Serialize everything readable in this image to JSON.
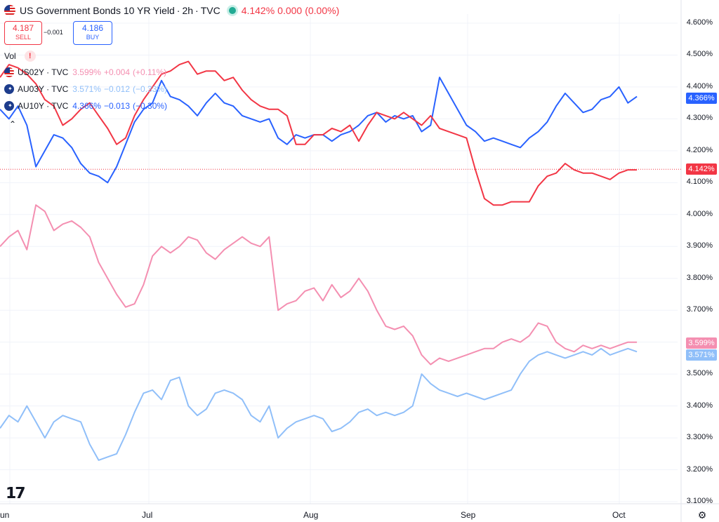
{
  "header": {
    "symbol_title": "US Government Bonds 10 YR Yield",
    "interval": "2h",
    "source": "TVC",
    "last": "4.142%",
    "change": "0.000",
    "change_pct": "(0.00%)"
  },
  "trade": {
    "sell_price": "4.187",
    "sell_label": "SELL",
    "spread": "−0.001",
    "buy_price": "4.186",
    "buy_label": "BUY"
  },
  "volume_label": "Vol",
  "legend": [
    {
      "name": "US02Y · TVC",
      "value": "3.599%",
      "change": "+0.004",
      "change_pct": "(+0.11%)",
      "color": "#f48fb1",
      "flag": "us-flag-icon"
    },
    {
      "name": "AU03Y · TVC",
      "value": "3.571%",
      "change": "−0.012",
      "change_pct": "(−0.33%)",
      "color": "#90bff9",
      "flag": "au-flag-icon"
    },
    {
      "name": "AU10Y · TVC",
      "value": "4.366%",
      "change": "−0.013",
      "change_pct": "(−0.30%)",
      "color": "#2962ff",
      "flag": "au-flag-icon"
    }
  ],
  "y_axis_ticks": [
    "4.600%",
    "4.500%",
    "4.400%",
    "4.300%",
    "4.200%",
    "4.100%",
    "4.000%",
    "3.900%",
    "3.800%",
    "3.700%",
    "3.600%",
    "3.500%",
    "3.400%",
    "3.300%",
    "3.200%",
    "3.100%"
  ],
  "x_axis_ticks": [
    "Jun",
    "Jul",
    "Aug",
    "Sep",
    "Oct"
  ],
  "badges": {
    "au10y": "4.366%",
    "us10y": "4.142%",
    "us02y": "3.599%",
    "au03y": "3.571%"
  },
  "colors": {
    "us10y": "#f23645",
    "au10y": "#2962ff",
    "us02y": "#f48fb1",
    "au03y": "#90bff9",
    "grid": "#f0f3fa"
  },
  "chart_data": {
    "type": "line",
    "x_ticks": [
      "Jun",
      "Jul",
      "Aug",
      "Sep",
      "Oct"
    ],
    "ylim": [
      3.1,
      4.6
    ],
    "grid": true,
    "series": [
      {
        "name": "US Government Bonds 10 YR Yield",
        "color": "#f23645",
        "x_range": [
          0.0,
          0.94
        ],
        "values": [
          4.43,
          4.47,
          4.46,
          4.44,
          4.41,
          4.36,
          4.34,
          4.28,
          4.3,
          4.33,
          4.35,
          4.31,
          4.27,
          4.22,
          4.24,
          4.31,
          4.36,
          4.4,
          4.44,
          4.45,
          4.47,
          4.48,
          4.44,
          4.45,
          4.45,
          4.42,
          4.43,
          4.39,
          4.36,
          4.34,
          4.33,
          4.33,
          4.31,
          4.22,
          4.22,
          4.25,
          4.25,
          4.27,
          4.26,
          4.28,
          4.23,
          4.28,
          4.32,
          4.31,
          4.3,
          4.32,
          4.3,
          4.28,
          4.31,
          4.27,
          4.26,
          4.25,
          4.24,
          4.14,
          4.05,
          4.03,
          4.03,
          4.04,
          4.04,
          4.04,
          4.09,
          4.12,
          4.13,
          4.16,
          4.14,
          4.13,
          4.13,
          4.12,
          4.11,
          4.13,
          4.14,
          4.14
        ]
      },
      {
        "name": "AU10Y · TVC",
        "color": "#2962ff",
        "x_range": [
          0.0,
          0.94
        ],
        "values": [
          4.33,
          4.3,
          4.34,
          4.28,
          4.15,
          4.2,
          4.25,
          4.24,
          4.21,
          4.16,
          4.13,
          4.12,
          4.1,
          4.15,
          4.22,
          4.29,
          4.33,
          4.35,
          4.42,
          4.37,
          4.36,
          4.34,
          4.31,
          4.35,
          4.38,
          4.35,
          4.34,
          4.31,
          4.3,
          4.29,
          4.3,
          4.24,
          4.22,
          4.25,
          4.24,
          4.25,
          4.25,
          4.23,
          4.25,
          4.26,
          4.28,
          4.31,
          4.32,
          4.29,
          4.31,
          4.3,
          4.31,
          4.26,
          4.28,
          4.43,
          4.38,
          4.33,
          4.28,
          4.26,
          4.23,
          4.24,
          4.23,
          4.22,
          4.21,
          4.24,
          4.26,
          4.29,
          4.34,
          4.38,
          4.35,
          4.32,
          4.33,
          4.36,
          4.37,
          4.4,
          4.35,
          4.37
        ]
      },
      {
        "name": "US02Y · TVC",
        "color": "#f48fb1",
        "x_range": [
          0.0,
          0.94
        ],
        "values": [
          3.9,
          3.93,
          3.95,
          3.89,
          4.03,
          4.01,
          3.95,
          3.97,
          3.98,
          3.96,
          3.93,
          3.85,
          3.8,
          3.75,
          3.71,
          3.72,
          3.78,
          3.87,
          3.9,
          3.88,
          3.9,
          3.93,
          3.92,
          3.88,
          3.86,
          3.89,
          3.91,
          3.93,
          3.91,
          3.9,
          3.93,
          3.7,
          3.72,
          3.73,
          3.76,
          3.77,
          3.73,
          3.78,
          3.74,
          3.76,
          3.8,
          3.76,
          3.7,
          3.65,
          3.64,
          3.65,
          3.62,
          3.56,
          3.53,
          3.55,
          3.54,
          3.55,
          3.56,
          3.57,
          3.58,
          3.58,
          3.6,
          3.61,
          3.6,
          3.62,
          3.66,
          3.65,
          3.6,
          3.58,
          3.57,
          3.59,
          3.58,
          3.59,
          3.58,
          3.59,
          3.6,
          3.6
        ]
      },
      {
        "name": "AU03Y · TVC",
        "color": "#90bff9",
        "x_range": [
          0.0,
          0.94
        ],
        "values": [
          3.33,
          3.37,
          3.35,
          3.4,
          3.35,
          3.3,
          3.35,
          3.37,
          3.36,
          3.35,
          3.28,
          3.23,
          3.24,
          3.25,
          3.31,
          3.38,
          3.44,
          3.45,
          3.42,
          3.48,
          3.49,
          3.4,
          3.37,
          3.39,
          3.44,
          3.45,
          3.44,
          3.42,
          3.37,
          3.35,
          3.4,
          3.3,
          3.33,
          3.35,
          3.36,
          3.37,
          3.36,
          3.32,
          3.33,
          3.35,
          3.38,
          3.39,
          3.37,
          3.38,
          3.37,
          3.38,
          3.4,
          3.5,
          3.47,
          3.45,
          3.44,
          3.43,
          3.44,
          3.43,
          3.42,
          3.43,
          3.44,
          3.45,
          3.5,
          3.54,
          3.56,
          3.57,
          3.56,
          3.55,
          3.56,
          3.57,
          3.56,
          3.58,
          3.56,
          3.57,
          3.58,
          3.57
        ]
      }
    ]
  }
}
